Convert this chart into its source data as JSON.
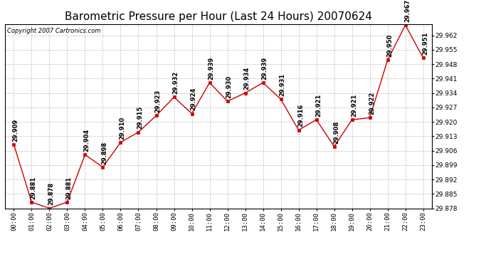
{
  "title": "Barometric Pressure per Hour (Last 24 Hours) 20070624",
  "copyright": "Copyright 2007 Cartronics.com",
  "hours": [
    "00:00",
    "01:00",
    "02:00",
    "03:00",
    "04:00",
    "05:00",
    "06:00",
    "07:00",
    "08:00",
    "09:00",
    "10:00",
    "11:00",
    "12:00",
    "13:00",
    "14:00",
    "15:00",
    "16:00",
    "17:00",
    "18:00",
    "19:00",
    "20:00",
    "21:00",
    "22:00",
    "23:00"
  ],
  "values": [
    29.909,
    29.881,
    29.878,
    29.881,
    29.904,
    29.898,
    29.91,
    29.915,
    29.923,
    29.932,
    29.924,
    29.939,
    29.93,
    29.934,
    29.939,
    29.931,
    29.916,
    29.921,
    29.908,
    29.921,
    29.922,
    29.95,
    29.967,
    29.951
  ],
  "ylim_min": 29.878,
  "ylim_max": 29.967,
  "line_color": "#cc0000",
  "marker_color": "#cc0000",
  "bg_color": "#ffffff",
  "grid_color": "#bbbbbb",
  "title_fontsize": 11,
  "label_fontsize": 6,
  "tick_fontsize": 6.5,
  "copyright_fontsize": 6
}
